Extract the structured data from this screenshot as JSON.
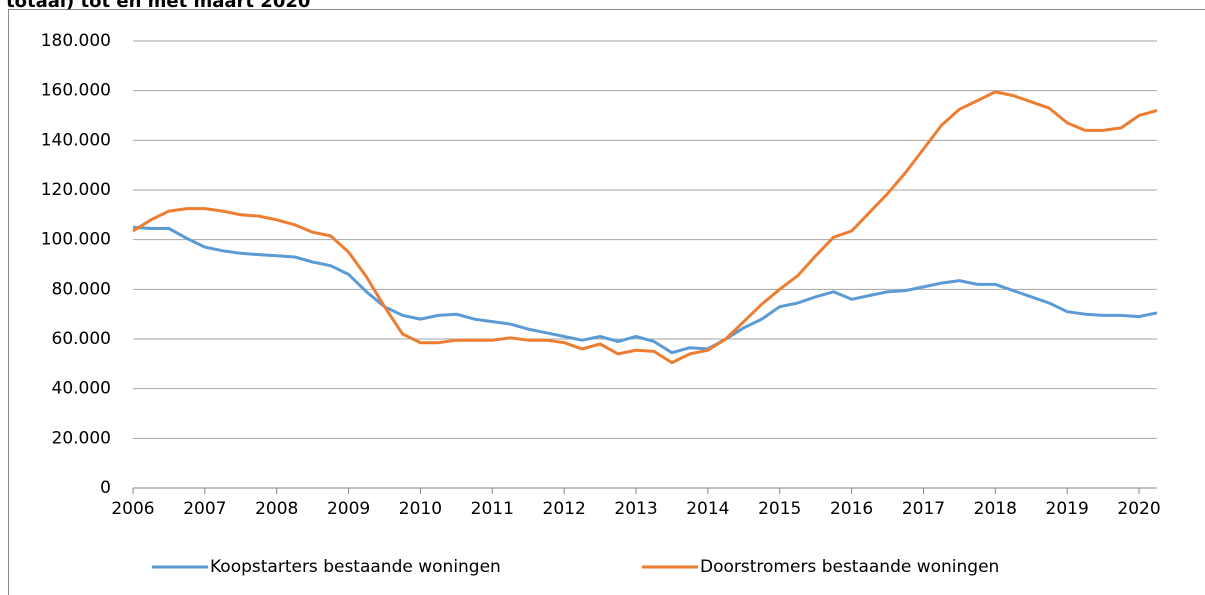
{
  "chart_data": {
    "type": "line",
    "title": "totaal) tot en met maart 2020",
    "x": [
      2006,
      2006.25,
      2006.5,
      2006.75,
      2007,
      2007.25,
      2007.5,
      2007.75,
      2008,
      2008.25,
      2008.5,
      2008.75,
      2009,
      2009.25,
      2009.5,
      2009.75,
      2010,
      2010.25,
      2010.5,
      2010.75,
      2011,
      2011.25,
      2011.5,
      2011.75,
      2012,
      2012.25,
      2012.5,
      2012.75,
      2013,
      2013.25,
      2013.5,
      2013.75,
      2014,
      2014.25,
      2014.5,
      2014.75,
      2015,
      2015.25,
      2015.5,
      2015.75,
      2016,
      2016.25,
      2016.5,
      2016.75,
      2017,
      2017.25,
      2017.5,
      2017.75,
      2018,
      2018.25,
      2018.5,
      2018.75,
      2019,
      2019.25,
      2019.5,
      2019.75,
      2020,
      2020.25
    ],
    "series": [
      {
        "name": "Koopstarters bestaande woningen",
        "color": "#5b9bd5",
        "values": [
          105000,
          104500,
          104500,
          100500,
          97000,
          95500,
          94500,
          94000,
          93500,
          93000,
          91000,
          89500,
          86000,
          79000,
          73000,
          69500,
          68000,
          69500,
          70000,
          68000,
          67000,
          66000,
          64000,
          62500,
          61000,
          59500,
          61000,
          59000,
          61000,
          59000,
          54500,
          56500,
          56000,
          60000,
          64500,
          68000,
          73000,
          74500,
          77000,
          79000,
          76000,
          77500,
          79000,
          79500,
          81000,
          82500,
          83500,
          82000,
          82000,
          79500,
          77000,
          74500,
          71000,
          70000,
          69500,
          69500,
          69000,
          70500
        ]
      },
      {
        "name": "Doorstromers bestaande woningen",
        "color": "#ed7d31",
        "values": [
          103500,
          108000,
          111500,
          112500,
          112500,
          111500,
          110000,
          109500,
          108000,
          106000,
          103000,
          101500,
          95000,
          85000,
          73000,
          62000,
          58500,
          58500,
          59500,
          59500,
          59500,
          60500,
          59500,
          59500,
          58500,
          56000,
          58000,
          54000,
          55500,
          55000,
          50500,
          54000,
          55500,
          60000,
          67000,
          74000,
          80000,
          85500,
          93500,
          101000,
          103500,
          111000,
          118500,
          127000,
          136500,
          146000,
          152500,
          156000,
          159500,
          158000,
          155500,
          153000,
          147000,
          144000,
          144000,
          145000,
          150000,
          152000
        ]
      }
    ],
    "xlim": [
      2006,
      2020.25
    ],
    "xticks": [
      2006,
      2007,
      2008,
      2009,
      2010,
      2011,
      2012,
      2013,
      2014,
      2015,
      2016,
      2017,
      2018,
      2019,
      2020
    ],
    "ylim": [
      0,
      180000
    ],
    "yticks": [
      0,
      {
        "value": 20000,
        "label": "20.000"
      },
      {
        "value": 40000,
        "label": "40.000"
      },
      {
        "value": 60000,
        "label": "60.000"
      },
      {
        "value": 80000,
        "label": "80.000"
      },
      {
        "value": 100000,
        "label": "100.000"
      },
      {
        "value": 120000,
        "label": "120.000"
      },
      {
        "value": 140000,
        "label": "140.000"
      },
      {
        "value": 160000,
        "label": "160.000"
      },
      {
        "value": 180000,
        "label": "180.000"
      }
    ],
    "grid": true,
    "legend": "bottom"
  }
}
